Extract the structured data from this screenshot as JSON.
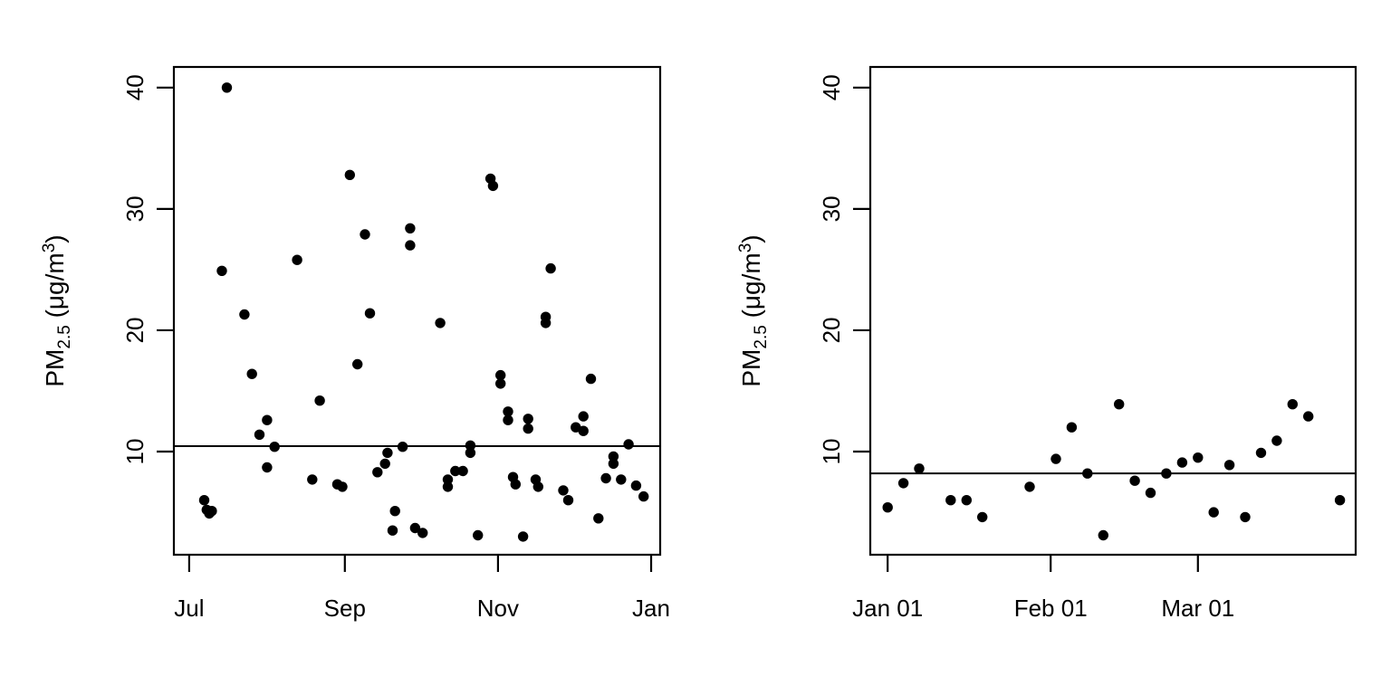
{
  "figure": {
    "background": "#ffffff",
    "foreground": "#000000",
    "description": "Two-panel scatter plot of PM2.5 concentration versus date, each panel with a horizontal reference line"
  },
  "chart_data": [
    {
      "type": "scatter",
      "panel": "left",
      "title": "",
      "xlabel": "",
      "ylabel": "PM2.5 (μg/m³)",
      "ylabel_parts": {
        "main": "PM",
        "sub": "2.5",
        "mid": " (μg/m",
        "sup": "3",
        "end": ")"
      },
      "point_color": "#000000",
      "grid": false,
      "legend": "none",
      "x_unit": "days since Jul 1",
      "x_domain_days": [
        -6.1,
        187.6
      ],
      "y_domain": [
        1.5,
        41.7
      ],
      "x_ticks": [
        {
          "label": "Jul",
          "d": 0
        },
        {
          "label": "Sep",
          "d": 62
        },
        {
          "label": "Nov",
          "d": 123
        },
        {
          "label": "Jan",
          "d": 184
        }
      ],
      "y_ticks": [
        10,
        20,
        30,
        40
      ],
      "hline": 10.45,
      "points": [
        {
          "date": "Jul 07",
          "d": 6,
          "v": 6.0
        },
        {
          "date": "Jul 08",
          "d": 7,
          "v": 5.2
        },
        {
          "date": "Jul 09",
          "d": 8,
          "v": 4.9
        },
        {
          "date": "Jul 10",
          "d": 9,
          "v": 5.1
        },
        {
          "date": "Jul 14",
          "d": 13,
          "v": 24.9
        },
        {
          "date": "Jul 16",
          "d": 15,
          "v": 40.0
        },
        {
          "date": "Jul 23",
          "d": 22,
          "v": 21.3
        },
        {
          "date": "Jul 26",
          "d": 25,
          "v": 16.4
        },
        {
          "date": "Jul 29",
          "d": 28,
          "v": 11.4
        },
        {
          "date": "Aug 01",
          "d": 31,
          "v": 12.6
        },
        {
          "date": "Aug 01",
          "d": 31,
          "v": 8.7
        },
        {
          "date": "Aug 04",
          "d": 34,
          "v": 10.4
        },
        {
          "date": "Aug 13",
          "d": 43,
          "v": 25.8
        },
        {
          "date": "Aug 19",
          "d": 49,
          "v": 7.7
        },
        {
          "date": "Aug 22",
          "d": 52,
          "v": 14.2
        },
        {
          "date": "Aug 29",
          "d": 59,
          "v": 7.3
        },
        {
          "date": "Aug 31",
          "d": 61,
          "v": 7.1
        },
        {
          "date": "Sep 03",
          "d": 64,
          "v": 32.8
        },
        {
          "date": "Sep 06",
          "d": 67,
          "v": 17.2
        },
        {
          "date": "Sep 09",
          "d": 70,
          "v": 27.9
        },
        {
          "date": "Sep 11",
          "d": 72,
          "v": 21.4
        },
        {
          "date": "Sep 14",
          "d": 75,
          "v": 8.3
        },
        {
          "date": "Sep 17",
          "d": 78,
          "v": 9.0
        },
        {
          "date": "Sep 18",
          "d": 79,
          "v": 9.9
        },
        {
          "date": "Sep 20",
          "d": 81,
          "v": 3.5
        },
        {
          "date": "Sep 21",
          "d": 82,
          "v": 5.1
        },
        {
          "date": "Sep 24",
          "d": 85,
          "v": 10.4
        },
        {
          "date": "Sep 27",
          "d": 88,
          "v": 28.4
        },
        {
          "date": "Sep 27",
          "d": 88,
          "v": 27.0
        },
        {
          "date": "Sep 29",
          "d": 90,
          "v": 3.7
        },
        {
          "date": "Oct 02",
          "d": 93,
          "v": 3.3
        },
        {
          "date": "Oct 09",
          "d": 100,
          "v": 20.6
        },
        {
          "date": "Oct 12",
          "d": 103,
          "v": 7.7
        },
        {
          "date": "Oct 12",
          "d": 103,
          "v": 7.1
        },
        {
          "date": "Oct 15",
          "d": 106,
          "v": 8.4
        },
        {
          "date": "Oct 18",
          "d": 109,
          "v": 8.4
        },
        {
          "date": "Oct 21",
          "d": 112,
          "v": 10.5
        },
        {
          "date": "Oct 21",
          "d": 112,
          "v": 9.9
        },
        {
          "date": "Oct 24",
          "d": 115,
          "v": 3.1
        },
        {
          "date": "Oct 29",
          "d": 120,
          "v": 32.5
        },
        {
          "date": "Oct 30",
          "d": 121,
          "v": 31.9
        },
        {
          "date": "Nov 02",
          "d": 124,
          "v": 16.3
        },
        {
          "date": "Nov 02",
          "d": 124,
          "v": 15.6
        },
        {
          "date": "Nov 05",
          "d": 127,
          "v": 13.3
        },
        {
          "date": "Nov 05",
          "d": 127,
          "v": 12.6
        },
        {
          "date": "Nov 07",
          "d": 129,
          "v": 7.9
        },
        {
          "date": "Nov 08",
          "d": 130,
          "v": 7.3
        },
        {
          "date": "Nov 11",
          "d": 133,
          "v": 3.0
        },
        {
          "date": "Nov 13",
          "d": 135,
          "v": 12.7
        },
        {
          "date": "Nov 13",
          "d": 135,
          "v": 11.9
        },
        {
          "date": "Nov 16",
          "d": 138,
          "v": 7.7
        },
        {
          "date": "Nov 17",
          "d": 139,
          "v": 7.1
        },
        {
          "date": "Nov 20",
          "d": 142,
          "v": 21.1
        },
        {
          "date": "Nov 20",
          "d": 142,
          "v": 20.6
        },
        {
          "date": "Nov 22",
          "d": 144,
          "v": 25.1
        },
        {
          "date": "Nov 27",
          "d": 149,
          "v": 6.8
        },
        {
          "date": "Nov 29",
          "d": 151,
          "v": 6.0
        },
        {
          "date": "Dec 02",
          "d": 154,
          "v": 12.0
        },
        {
          "date": "Dec 05",
          "d": 157,
          "v": 12.9
        },
        {
          "date": "Dec 05",
          "d": 157,
          "v": 11.7
        },
        {
          "date": "Dec 08",
          "d": 160,
          "v": 16.0
        },
        {
          "date": "Dec 11",
          "d": 163,
          "v": 4.5
        },
        {
          "date": "Dec 14",
          "d": 166,
          "v": 7.8
        },
        {
          "date": "Dec 17",
          "d": 169,
          "v": 9.6
        },
        {
          "date": "Dec 17",
          "d": 169,
          "v": 9.0
        },
        {
          "date": "Dec 20",
          "d": 172,
          "v": 7.7
        },
        {
          "date": "Dec 23",
          "d": 175,
          "v": 10.6
        },
        {
          "date": "Dec 26",
          "d": 178,
          "v": 7.2
        },
        {
          "date": "Dec 29",
          "d": 181,
          "v": 6.3
        }
      ]
    },
    {
      "type": "scatter",
      "panel": "right",
      "title": "",
      "xlabel": "",
      "ylabel": "PM2.5 (μg/m³)",
      "ylabel_parts": {
        "main": "PM",
        "sub": "2.5",
        "mid": " (μg/m",
        "sup": "3",
        "end": ")"
      },
      "point_color": "#000000",
      "grid": false,
      "legend": "none",
      "x_unit": "days since Jan 1",
      "x_domain_days": [
        -3.3,
        89.0
      ],
      "y_domain": [
        1.5,
        41.7
      ],
      "x_ticks": [
        {
          "label": "Jan 01",
          "d": 0
        },
        {
          "label": "Feb 01",
          "d": 31
        },
        {
          "label": "Mar 01",
          "d": 59
        }
      ],
      "y_ticks": [
        10,
        20,
        30,
        40
      ],
      "hline": 8.2,
      "points": [
        {
          "date": "Jan 01",
          "d": 0,
          "v": 5.4
        },
        {
          "date": "Jan 04",
          "d": 3,
          "v": 7.4
        },
        {
          "date": "Jan 07",
          "d": 6,
          "v": 8.6
        },
        {
          "date": "Jan 13",
          "d": 12,
          "v": 6.0
        },
        {
          "date": "Jan 16",
          "d": 15,
          "v": 6.0
        },
        {
          "date": "Jan 19",
          "d": 18,
          "v": 4.6
        },
        {
          "date": "Jan 28",
          "d": 27,
          "v": 7.1
        },
        {
          "date": "Feb 02",
          "d": 32,
          "v": 9.4
        },
        {
          "date": "Feb 05",
          "d": 35,
          "v": 12.0
        },
        {
          "date": "Feb 08",
          "d": 38,
          "v": 8.2
        },
        {
          "date": "Feb 11",
          "d": 41,
          "v": 3.1
        },
        {
          "date": "Feb 14",
          "d": 44,
          "v": 13.9
        },
        {
          "date": "Feb 17",
          "d": 47,
          "v": 7.6
        },
        {
          "date": "Feb 20",
          "d": 50,
          "v": 6.6
        },
        {
          "date": "Feb 23",
          "d": 53,
          "v": 8.2
        },
        {
          "date": "Feb 26",
          "d": 56,
          "v": 9.1
        },
        {
          "date": "Mar 01",
          "d": 59,
          "v": 9.5
        },
        {
          "date": "Mar 04",
          "d": 62,
          "v": 5.0
        },
        {
          "date": "Mar 07",
          "d": 65,
          "v": 8.9
        },
        {
          "date": "Mar 10",
          "d": 68,
          "v": 4.6
        },
        {
          "date": "Mar 13",
          "d": 71,
          "v": 9.9
        },
        {
          "date": "Mar 16",
          "d": 74,
          "v": 10.9
        },
        {
          "date": "Mar 19",
          "d": 77,
          "v": 13.9
        },
        {
          "date": "Mar 22",
          "d": 80,
          "v": 12.9
        },
        {
          "date": "Mar 28",
          "d": 86,
          "v": 6.0
        }
      ]
    }
  ]
}
